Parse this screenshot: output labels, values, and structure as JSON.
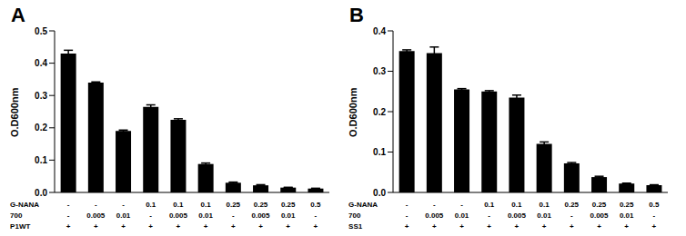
{
  "chart_data": [
    {
      "type": "bar",
      "title": "A",
      "y_label": "O.D600nm",
      "color": "#000000",
      "ylim": [
        0,
        0.5
      ],
      "yticks": [
        {
          "value": 0,
          "label": "0.0"
        },
        0.1,
        0.2,
        0.3,
        0.4,
        0.5
      ],
      "category_rows": [
        {
          "name": "G-NANA",
          "labels": [
            "-",
            "-",
            "-",
            "0.1",
            "0.1",
            "0.1",
            "0.25",
            "0.25",
            "0.25",
            "0.5"
          ]
        },
        {
          "name": "700",
          "labels": [
            "-",
            "0.005",
            "0.01",
            "-",
            "0.005",
            "0.01",
            "-",
            "0.005",
            "0.01",
            "-"
          ]
        },
        {
          "name": "P1WT",
          "labels": [
            "+",
            "+",
            "+",
            "+",
            "+",
            "+",
            "+",
            "+",
            "+",
            "+"
          ]
        }
      ],
      "values": [
        0.43,
        0.34,
        0.19,
        0.265,
        0.225,
        0.088,
        0.03,
        0.022,
        0.015,
        0.012
      ],
      "errors": [
        0.01,
        0.002,
        0.003,
        0.006,
        0.003,
        0.003,
        0.002,
        0.002,
        0.001,
        0.001
      ]
    },
    {
      "type": "bar",
      "title": "B",
      "y_label": "O.D600nm",
      "color": "#000000",
      "ylim": [
        0,
        0.4
      ],
      "yticks": [
        {
          "value": 0,
          "label": "0.0"
        },
        0.1,
        0.2,
        0.3,
        0.4
      ],
      "category_rows": [
        {
          "name": "G-NANA",
          "labels": [
            "-",
            "-",
            "-",
            "0.1",
            "0.1",
            "0.1",
            "0.25",
            "0.25",
            "0.25",
            "0.5"
          ]
        },
        {
          "name": "700",
          "labels": [
            "-",
            "0.005",
            "0.01",
            "-",
            "0.005",
            "0.01",
            "-",
            "0.005",
            "0.01",
            "-"
          ]
        },
        {
          "name": "SS1",
          "labels": [
            "+",
            "+",
            "+",
            "+",
            "+",
            "+",
            "+",
            "+",
            "+",
            "+"
          ]
        }
      ],
      "values": [
        0.35,
        0.345,
        0.255,
        0.25,
        0.235,
        0.12,
        0.072,
        0.038,
        0.022,
        0.018
      ],
      "errors": [
        0.003,
        0.015,
        0.002,
        0.002,
        0.006,
        0.005,
        0.002,
        0.002,
        0.001,
        0.001
      ]
    }
  ]
}
